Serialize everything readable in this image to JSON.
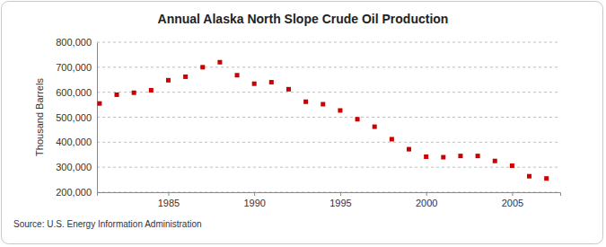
{
  "chart_data": {
    "type": "scatter",
    "title": "Annual Alaska North Slope Crude Oil Production",
    "y_label": "Thousand Barrels",
    "source": "Source: U.S. Energy Information Administration",
    "x": [
      1981,
      1982,
      1983,
      1984,
      1985,
      1986,
      1987,
      1988,
      1989,
      1990,
      1991,
      1992,
      1993,
      1994,
      1995,
      1996,
      1997,
      1998,
      1999,
      2000,
      2001,
      2002,
      2003,
      2004,
      2005,
      2006,
      2007
    ],
    "values": [
      555000,
      590000,
      598000,
      608000,
      648000,
      662000,
      700000,
      720000,
      668000,
      634000,
      640000,
      612000,
      562000,
      552000,
      527000,
      492000,
      462000,
      412000,
      372000,
      342000,
      340000,
      345000,
      345000,
      325000,
      306000,
      264000,
      255000
    ],
    "color": "#cc0000",
    "marker": "square",
    "xlim": [
      1980.85,
      2007.8
    ],
    "xticks": [
      1985,
      1990,
      1995,
      2000,
      2005
    ],
    "ylim": [
      200000,
      800000
    ],
    "yticks": [
      {
        "value": 200000,
        "label": "200,000"
      },
      {
        "value": 300000,
        "label": "300,000"
      },
      {
        "value": 400000,
        "label": "400,000"
      },
      {
        "value": 500000,
        "label": "500,000"
      },
      {
        "value": 600000,
        "label": "600,000"
      },
      {
        "value": 700000,
        "label": "700,000"
      },
      {
        "value": 800000,
        "label": "800,000"
      }
    ],
    "grid": true
  }
}
